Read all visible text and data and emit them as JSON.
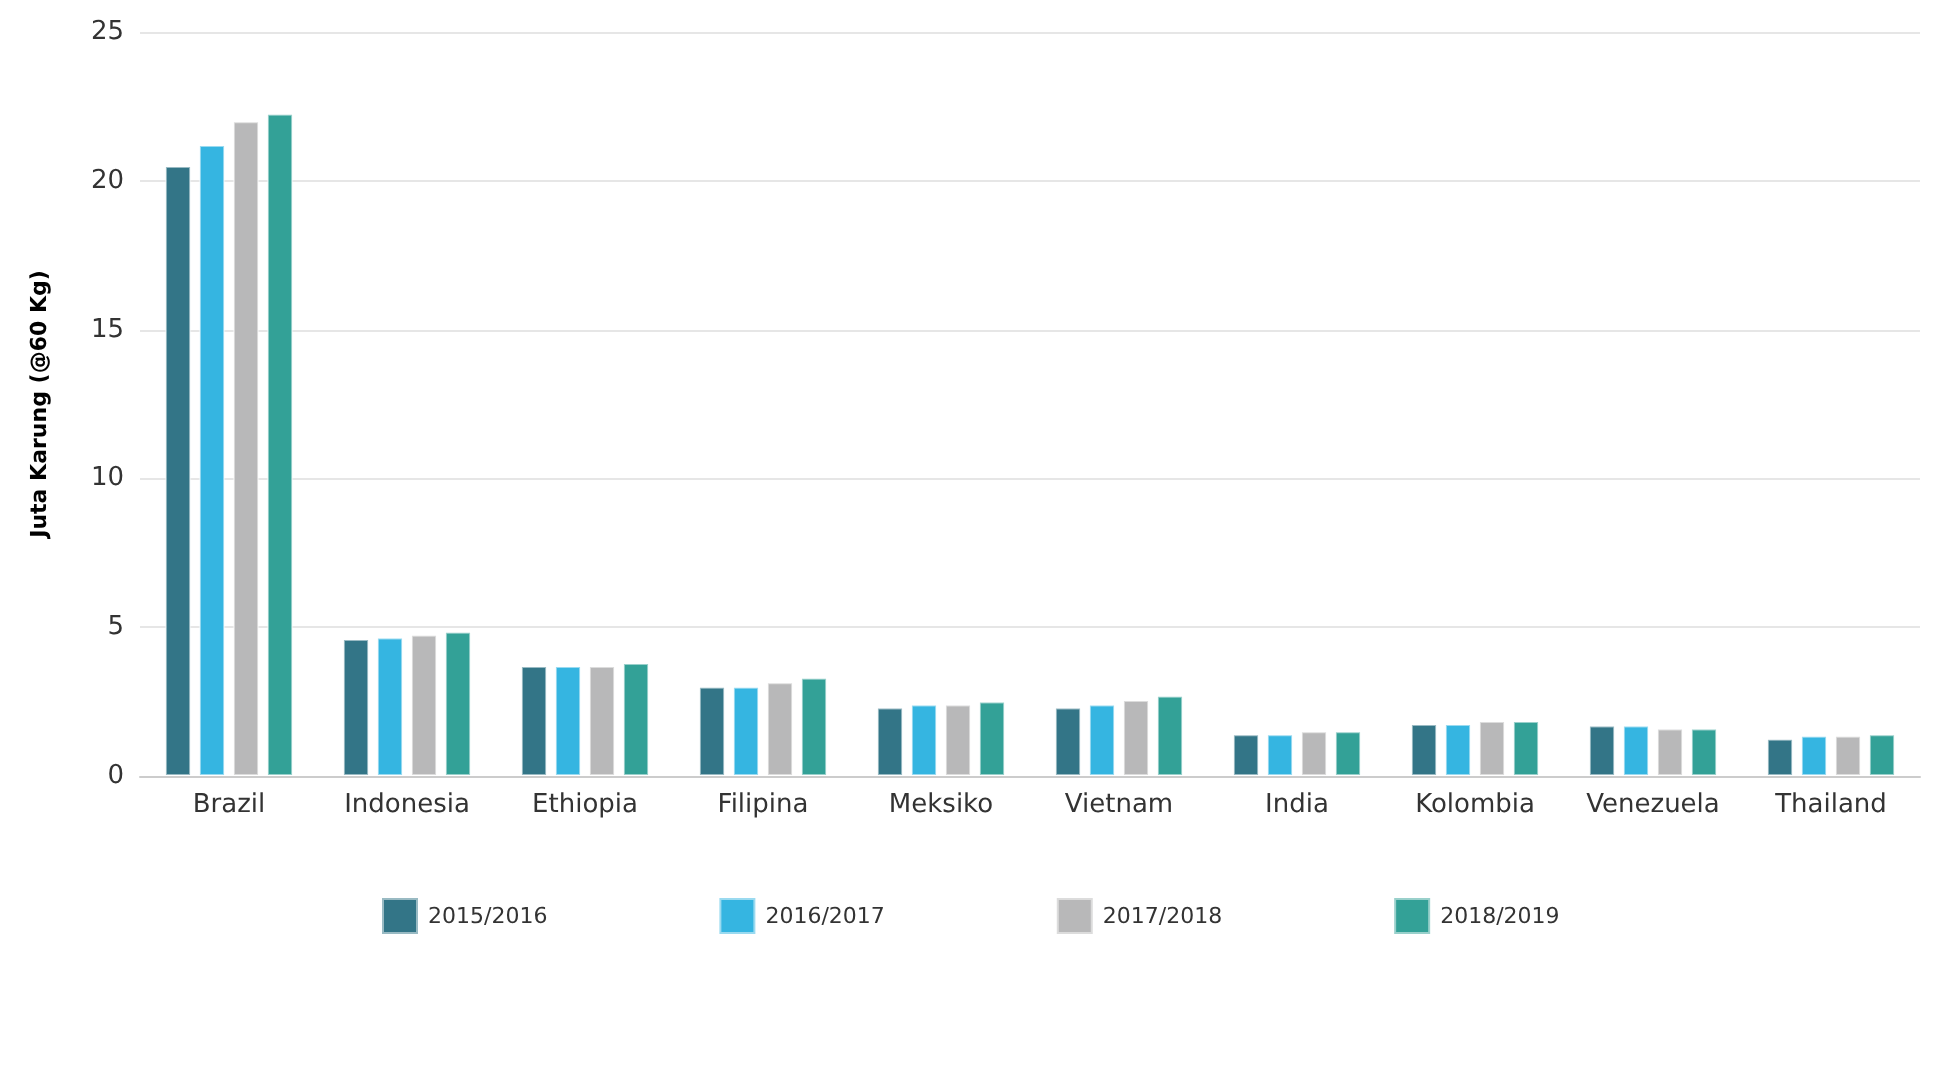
{
  "chart_data": {
    "type": "bar",
    "ylabel": "Juta Karung (@60 Kg)",
    "categories": [
      "Brazil",
      "Indonesia",
      "Ethiopia",
      "Filipina",
      "Meksiko",
      "Vietnam",
      "India",
      "Kolombia",
      "Venezuela",
      "Thailand"
    ],
    "series": [
      {
        "name": "2015/2016",
        "color": "#337587",
        "values": [
          20.5,
          4.6,
          3.7,
          3.0,
          2.3,
          2.3,
          1.4,
          1.75,
          1.7,
          1.25
        ]
      },
      {
        "name": "2016/2017",
        "color": "#35b5e1",
        "values": [
          21.2,
          4.65,
          3.7,
          3.0,
          2.4,
          2.4,
          1.4,
          1.75,
          1.7,
          1.35
        ]
      },
      {
        "name": "2017/2018",
        "color": "#b8b8b9",
        "values": [
          22.0,
          4.75,
          3.7,
          3.15,
          2.4,
          2.55,
          1.5,
          1.85,
          1.6,
          1.35
        ]
      },
      {
        "name": "2018/2019",
        "color": "#33a197",
        "values": [
          22.25,
          4.85,
          3.8,
          3.3,
          2.5,
          2.7,
          1.5,
          1.85,
          1.6,
          1.4
        ]
      }
    ],
    "ylim": [
      0,
      25
    ],
    "yticks": [
      0,
      5,
      10,
      15,
      20,
      25
    ],
    "grid": "y",
    "legend": "bottom"
  }
}
